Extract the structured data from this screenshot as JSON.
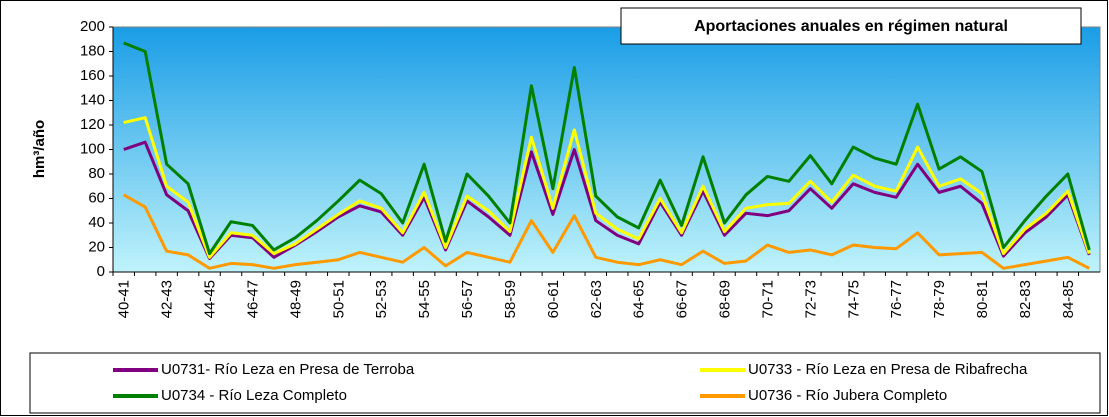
{
  "chart_data": {
    "type": "line",
    "title": "Aportaciones anuales en régimen natural",
    "y_label": "hm³/año",
    "categories": [
      "40-41",
      null,
      "42-43",
      null,
      "44-45",
      null,
      "46-47",
      null,
      "48-49",
      null,
      "50-51",
      null,
      "52-53",
      null,
      "54-55",
      null,
      "56-57",
      null,
      "58-59",
      null,
      "60-61",
      null,
      "62-63",
      null,
      "64-65",
      null,
      "66-67",
      null,
      "68-69",
      null,
      "70-71",
      null,
      "72-73",
      null,
      "74-75",
      null,
      "76-77",
      null,
      "78-79",
      null,
      "80-81",
      null,
      "82-83",
      null,
      "84-85",
      null
    ],
    "series": [
      {
        "name": "U0731- Río Leza en Presa de Terroba",
        "color": "#800080",
        "values": [
          100,
          106,
          63,
          50,
          11,
          30,
          28,
          12,
          22,
          33,
          45,
          54,
          49,
          30,
          61,
          18,
          58,
          45,
          30,
          98,
          47,
          100,
          42,
          30,
          23,
          57,
          30,
          66,
          30,
          48,
          46,
          50,
          68,
          52,
          72,
          65,
          61,
          88,
          65,
          70,
          56,
          13,
          32,
          45,
          63,
          14
        ]
      },
      {
        "name": "U0733 - Río Leza en Presa de Ribafrecha",
        "color": "#ffff00",
        "values": [
          122,
          126,
          70,
          57,
          12,
          32,
          30,
          15,
          23,
          35,
          47,
          58,
          52,
          32,
          65,
          20,
          62,
          50,
          33,
          110,
          52,
          116,
          48,
          35,
          27,
          60,
          32,
          70,
          33,
          52,
          55,
          56,
          74,
          57,
          79,
          70,
          66,
          102,
          70,
          76,
          64,
          15,
          35,
          48,
          66,
          15
        ]
      },
      {
        "name": "U0734 - Río Leza Completo",
        "color": "#008000",
        "values": [
          187,
          180,
          88,
          72,
          15,
          41,
          38,
          18,
          28,
          42,
          58,
          75,
          64,
          40,
          88,
          25,
          80,
          62,
          40,
          152,
          68,
          167,
          62,
          45,
          36,
          75,
          38,
          94,
          40,
          63,
          78,
          74,
          95,
          72,
          102,
          93,
          88,
          137,
          84,
          94,
          82,
          20,
          42,
          62,
          80,
          18
        ]
      },
      {
        "name": "U0736 - Río Jubera Completo",
        "color": "#ff9900",
        "values": [
          63,
          53,
          17,
          14,
          3,
          7,
          6,
          3,
          6,
          8,
          10,
          16,
          12,
          8,
          20,
          5,
          16,
          12,
          8,
          42,
          16,
          46,
          12,
          8,
          6,
          10,
          6,
          17,
          7,
          9,
          22,
          16,
          18,
          14,
          22,
          20,
          19,
          32,
          14,
          15,
          16,
          3,
          6,
          9,
          12,
          3
        ]
      }
    ],
    "ylim": [
      0,
      200
    ],
    "yticks": [
      0,
      20,
      40,
      60,
      80,
      100,
      120,
      140,
      160,
      180,
      200
    ],
    "grid": false
  }
}
